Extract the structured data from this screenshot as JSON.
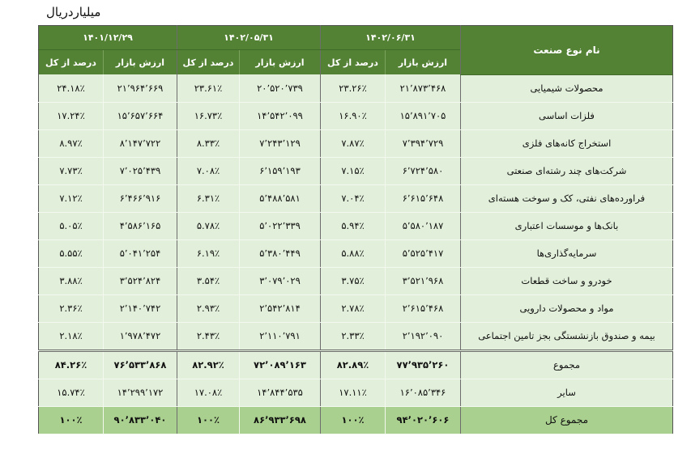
{
  "unit_label": "میلیاردریال",
  "header": {
    "name_col": "نام نوع صنعت",
    "periods": [
      "۱۴۰۲/۰۶/۳۱",
      "۱۴۰۲/۰۵/۳۱",
      "۱۴۰۱/۱۲/۲۹"
    ],
    "value_label": "ارزش بازار",
    "percent_label": "درصد از کل"
  },
  "colors": {
    "header_bg": "#548235",
    "body_bg": "#e2efda",
    "total_bg": "#a9d08e"
  },
  "rows": [
    {
      "name": "محصولات شیمیایی",
      "cells": [
        "۲۱٬۸۷۳٬۴۶۸",
        "۲۳.۲۶٪",
        "۲۰٬۵۲۰٬۷۳۹",
        "۲۳.۶۱٪",
        "۲۱٬۹۶۴٬۶۶۹",
        "۲۴.۱۸٪"
      ]
    },
    {
      "name": "فلزات اساسی",
      "cells": [
        "۱۵٬۸۹۱٬۷۰۵",
        "۱۶.۹۰٪",
        "۱۴٬۵۴۲٬۰۹۹",
        "۱۶.۷۳٪",
        "۱۵٬۶۵۷٬۶۶۴",
        "۱۷.۲۴٪"
      ]
    },
    {
      "name": "استخراج کانه‌های فلزی",
      "cells": [
        "۷٬۳۹۴٬۷۲۹",
        "۷.۸۷٪",
        "۷٬۲۴۳٬۱۲۹",
        "۸.۳۳٪",
        "۸٬۱۴۷٬۷۲۲",
        "۸.۹۷٪"
      ]
    },
    {
      "name": "شرکت‌های چند رشته‌ای صنعتی",
      "cells": [
        "۶٬۷۲۴٬۵۸۰",
        "۷.۱۵٪",
        "۶٬۱۵۹٬۱۹۳",
        "۷.۰۸٪",
        "۷٬۰۲۵٬۴۳۹",
        "۷.۷۳٪"
      ]
    },
    {
      "name": "فراورده‌های نفتی، کک و سوخت هسته‌ای",
      "cells": [
        "۶٬۶۱۵٬۶۴۸",
        "۷.۰۴٪",
        "۵٬۴۸۸٬۵۸۱",
        "۶.۳۱٪",
        "۶٬۴۶۶٬۹۱۶",
        "۷.۱۲٪"
      ]
    },
    {
      "name": "بانک‌ها و موسسات اعتباری",
      "cells": [
        "۵٬۵۸۰٬۱۸۷",
        "۵.۹۴٪",
        "۵٬۰۲۲٬۳۳۹",
        "۵.۷۸٪",
        "۴٬۵۸۶٬۱۶۵",
        "۵.۰۵٪"
      ]
    },
    {
      "name": "سرمایه‌گذاری‌ها",
      "cells": [
        "۵٬۵۲۵٬۴۱۷",
        "۵.۸۸٪",
        "۵٬۳۸۰٬۴۴۹",
        "۶.۱۹٪",
        "۵٬۰۴۱٬۲۵۴",
        "۵.۵۵٪"
      ]
    },
    {
      "name": "خودرو و ساخت قطعات",
      "cells": [
        "۳٬۵۲۱٬۹۶۸",
        "۳.۷۵٪",
        "۳٬۰۷۹٬۰۲۹",
        "۳.۵۴٪",
        "۳٬۵۲۴٬۸۲۴",
        "۳.۸۸٪"
      ]
    },
    {
      "name": "مواد و محصولات دارویی",
      "cells": [
        "۲٬۶۱۵٬۴۶۸",
        "۲.۷۸٪",
        "۲٬۵۴۲٬۸۱۴",
        "۲.۹۳٪",
        "۲٬۱۴۰٬۷۴۲",
        "۲.۳۶٪"
      ]
    },
    {
      "name": "بیمه و صندوق بازنشستگی بجز تامین اجتماعی",
      "cells": [
        "۲٬۱۹۲٬۰۹۰",
        "۲.۳۳٪",
        "۲٬۱۱۰٬۷۹۱",
        "۲.۴۳٪",
        "۱٬۹۷۸٬۴۷۲",
        "۲.۱۸٪"
      ]
    }
  ],
  "sum_row": {
    "name": "مجموع",
    "cells": [
      "۷۷٬۹۳۵٬۲۶۰",
      "۸۲.۸۹٪",
      "۷۲٬۰۸۹٬۱۶۳",
      "۸۲.۹۲٪",
      "۷۶٬۵۳۳٬۸۶۸",
      "۸۴.۲۶٪"
    ]
  },
  "other_row": {
    "name": "سایر",
    "cells": [
      "۱۶٬۰۸۵٬۳۴۶",
      "۱۷.۱۱٪",
      "۱۴٬۸۴۴٬۵۳۵",
      "۱۷.۰۸٪",
      "۱۴٬۲۹۹٬۱۷۲",
      "۱۵.۷۴٪"
    ]
  },
  "total_row": {
    "name": "مجموع کل",
    "cells": [
      "۹۴٬۰۲۰٬۶۰۶",
      "۱۰۰٪",
      "۸۶٬۹۳۳٬۶۹۸",
      "۱۰۰٪",
      "۹۰٬۸۳۳٬۰۴۰",
      "۱۰۰٪"
    ]
  }
}
